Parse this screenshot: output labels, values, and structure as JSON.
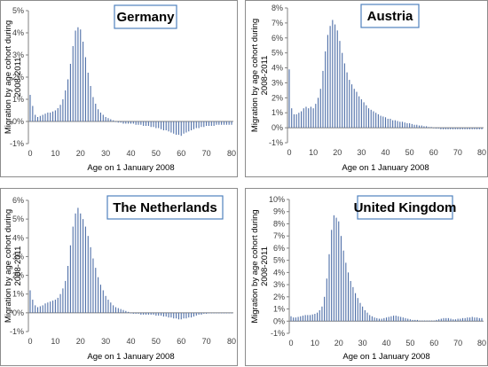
{
  "colors": {
    "bar": "#4f6fa8",
    "axis": "#808080",
    "frame": "#8c8c8c",
    "title_border": "#4f81bd"
  },
  "chart_data": [
    {
      "type": "bar",
      "title": "Germany",
      "xlabel": "Age on 1 January 2008",
      "ylabel": "Migration by age cohort during 2008-2011",
      "x": [
        0,
        1,
        2,
        3,
        4,
        5,
        6,
        7,
        8,
        9,
        10,
        11,
        12,
        13,
        14,
        15,
        16,
        17,
        18,
        19,
        20,
        21,
        22,
        23,
        24,
        25,
        26,
        27,
        28,
        29,
        30,
        31,
        32,
        33,
        34,
        35,
        36,
        37,
        38,
        39,
        40,
        41,
        42,
        43,
        44,
        45,
        46,
        47,
        48,
        49,
        50,
        51,
        52,
        53,
        54,
        55,
        56,
        57,
        58,
        59,
        60,
        61,
        62,
        63,
        64,
        65,
        66,
        67,
        68,
        69,
        70,
        71,
        72,
        73,
        74,
        75,
        76,
        77,
        78,
        79,
        80
      ],
      "values": [
        1.2,
        0.7,
        0.3,
        0.2,
        0.25,
        0.3,
        0.35,
        0.4,
        0.4,
        0.45,
        0.5,
        0.6,
        0.75,
        1.0,
        1.4,
        1.9,
        2.6,
        3.4,
        4.1,
        4.25,
        4.15,
        3.6,
        2.9,
        2.2,
        1.6,
        1.1,
        0.8,
        0.55,
        0.4,
        0.3,
        0.2,
        0.15,
        0.1,
        0.05,
        0.0,
        -0.05,
        -0.05,
        -0.1,
        -0.1,
        -0.1,
        -0.1,
        -0.1,
        -0.15,
        -0.15,
        -0.15,
        -0.2,
        -0.2,
        -0.2,
        -0.25,
        -0.25,
        -0.3,
        -0.3,
        -0.35,
        -0.4,
        -0.4,
        -0.45,
        -0.5,
        -0.55,
        -0.6,
        -0.6,
        -0.65,
        -0.55,
        -0.5,
        -0.45,
        -0.4,
        -0.35,
        -0.3,
        -0.3,
        -0.25,
        -0.25,
        -0.2,
        -0.2,
        -0.2,
        -0.2,
        -0.15,
        -0.15,
        -0.15,
        -0.15,
        -0.15,
        -0.15,
        -0.15
      ],
      "ylim": [
        -1,
        5
      ],
      "y_ticks": [
        "-1%",
        "0%",
        "1%",
        "2%",
        "3%",
        "4%",
        "5%"
      ],
      "x_ticks": [
        "0",
        "10",
        "20",
        "30",
        "40",
        "50",
        "60",
        "70",
        "80"
      ],
      "grid": false
    },
    {
      "type": "bar",
      "title": "Austria",
      "xlabel": "Age on 1 January 2008",
      "ylabel": "Migration by age cohort during 2008-2011",
      "x": [
        0,
        1,
        2,
        3,
        4,
        5,
        6,
        7,
        8,
        9,
        10,
        11,
        12,
        13,
        14,
        15,
        16,
        17,
        18,
        19,
        20,
        21,
        22,
        23,
        24,
        25,
        26,
        27,
        28,
        29,
        30,
        31,
        32,
        33,
        34,
        35,
        36,
        37,
        38,
        39,
        40,
        41,
        42,
        43,
        44,
        45,
        46,
        47,
        48,
        49,
        50,
        51,
        52,
        53,
        54,
        55,
        56,
        57,
        58,
        59,
        60,
        61,
        62,
        63,
        64,
        65,
        66,
        67,
        68,
        69,
        70,
        71,
        72,
        73,
        74,
        75,
        76,
        77,
        78,
        79,
        80
      ],
      "values": [
        3.9,
        1.3,
        0.9,
        0.9,
        1.0,
        1.1,
        1.3,
        1.4,
        1.3,
        1.4,
        1.3,
        1.6,
        2.0,
        2.6,
        3.8,
        5.1,
        6.2,
        6.8,
        7.2,
        6.9,
        6.5,
        5.8,
        5.0,
        4.3,
        3.7,
        3.2,
        2.9,
        2.6,
        2.4,
        2.1,
        1.9,
        1.7,
        1.5,
        1.3,
        1.2,
        1.1,
        1.0,
        0.9,
        0.8,
        0.75,
        0.7,
        0.6,
        0.6,
        0.5,
        0.5,
        0.45,
        0.4,
        0.4,
        0.35,
        0.3,
        0.3,
        0.25,
        0.2,
        0.2,
        0.15,
        0.15,
        0.1,
        0.1,
        0.05,
        0.05,
        0.0,
        -0.05,
        -0.05,
        -0.1,
        -0.1,
        -0.1,
        -0.1,
        -0.1,
        -0.1,
        -0.1,
        -0.1,
        -0.1,
        -0.1,
        -0.1,
        -0.1,
        -0.1,
        -0.1,
        -0.1,
        -0.1,
        -0.1,
        -0.1
      ],
      "ylim": [
        -1,
        8
      ],
      "y_ticks": [
        "-1%",
        "0%",
        "1%",
        "2%",
        "3%",
        "4%",
        "5%",
        "6%",
        "7%",
        "8%"
      ],
      "x_ticks": [
        "0",
        "10",
        "20",
        "30",
        "40",
        "50",
        "60",
        "70",
        "80"
      ],
      "grid": false
    },
    {
      "type": "bar",
      "title": "The Netherlands",
      "xlabel": "Age on 1 January 2008",
      "ylabel": "Migration by age cohort during 2008-2011",
      "x": [
        0,
        1,
        2,
        3,
        4,
        5,
        6,
        7,
        8,
        9,
        10,
        11,
        12,
        13,
        14,
        15,
        16,
        17,
        18,
        19,
        20,
        21,
        22,
        23,
        24,
        25,
        26,
        27,
        28,
        29,
        30,
        31,
        32,
        33,
        34,
        35,
        36,
        37,
        38,
        39,
        40,
        41,
        42,
        43,
        44,
        45,
        46,
        47,
        48,
        49,
        50,
        51,
        52,
        53,
        54,
        55,
        56,
        57,
        58,
        59,
        60,
        61,
        62,
        63,
        64,
        65,
        66,
        67,
        68,
        69,
        70,
        71,
        72,
        73,
        74,
        75,
        76,
        77,
        78,
        79,
        80
      ],
      "values": [
        1.2,
        0.7,
        0.4,
        0.3,
        0.35,
        0.4,
        0.5,
        0.55,
        0.6,
        0.65,
        0.7,
        0.8,
        1.0,
        1.3,
        1.7,
        2.5,
        3.6,
        4.6,
        5.3,
        5.6,
        5.3,
        5.0,
        4.6,
        4.1,
        3.5,
        2.9,
        2.4,
        1.9,
        1.5,
        1.2,
        0.9,
        0.7,
        0.55,
        0.4,
        0.3,
        0.25,
        0.2,
        0.15,
        0.1,
        0.05,
        0.0,
        -0.05,
        -0.05,
        -0.05,
        -0.1,
        -0.1,
        -0.1,
        -0.1,
        -0.1,
        -0.1,
        -0.15,
        -0.15,
        -0.15,
        -0.2,
        -0.2,
        -0.25,
        -0.25,
        -0.3,
        -0.3,
        -0.35,
        -0.35,
        -0.3,
        -0.3,
        -0.25,
        -0.25,
        -0.2,
        -0.15,
        -0.1,
        -0.1,
        -0.05,
        -0.05,
        0.0,
        0.0,
        0.0,
        0.0,
        0.0,
        0.0,
        0.0,
        0.0,
        0.0,
        0.0
      ],
      "ylim": [
        -1,
        6
      ],
      "y_ticks": [
        "-1%",
        "0%",
        "1%",
        "2%",
        "3%",
        "4%",
        "5%",
        "6%"
      ],
      "x_ticks": [
        "0",
        "10",
        "20",
        "30",
        "40",
        "50",
        "60",
        "70",
        "80"
      ],
      "grid": false
    },
    {
      "type": "bar",
      "title": "United Kingdom",
      "xlabel": "Age on 1 January 2008",
      "ylabel": "Migration by age cohort during 2008-2011",
      "x": [
        0,
        1,
        2,
        3,
        4,
        5,
        6,
        7,
        8,
        9,
        10,
        11,
        12,
        13,
        14,
        15,
        16,
        17,
        18,
        19,
        20,
        21,
        22,
        23,
        24,
        25,
        26,
        27,
        28,
        29,
        30,
        31,
        32,
        33,
        34,
        35,
        36,
        37,
        38,
        39,
        40,
        41,
        42,
        43,
        44,
        45,
        46,
        47,
        48,
        49,
        50,
        51,
        52,
        53,
        54,
        55,
        56,
        57,
        58,
        59,
        60,
        61,
        62,
        63,
        64,
        65,
        66,
        67,
        68,
        69,
        70,
        71,
        72,
        73,
        74,
        75,
        76,
        77,
        78,
        79,
        80
      ],
      "values": [
        0.4,
        0.3,
        0.3,
        0.35,
        0.4,
        0.45,
        0.5,
        0.5,
        0.5,
        0.55,
        0.6,
        0.7,
        0.9,
        1.2,
        2.0,
        3.5,
        5.5,
        7.5,
        8.7,
        8.5,
        8.2,
        7.0,
        5.8,
        4.8,
        4.0,
        3.3,
        2.8,
        2.3,
        1.9,
        1.5,
        1.2,
        0.9,
        0.7,
        0.5,
        0.4,
        0.3,
        0.25,
        0.2,
        0.2,
        0.25,
        0.3,
        0.35,
        0.4,
        0.45,
        0.45,
        0.4,
        0.35,
        0.3,
        0.25,
        0.2,
        0.15,
        0.1,
        0.1,
        0.1,
        0.05,
        0.05,
        0.05,
        0.05,
        0.05,
        0.05,
        0.05,
        0.1,
        0.15,
        0.2,
        0.25,
        0.25,
        0.25,
        0.2,
        0.15,
        0.15,
        0.2,
        0.2,
        0.25,
        0.25,
        0.3,
        0.3,
        0.35,
        0.3,
        0.3,
        0.25,
        0.25
      ],
      "ylim": [
        -1,
        10
      ],
      "y_ticks": [
        "-1%",
        "0%",
        "1%",
        "2%",
        "3%",
        "4%",
        "5%",
        "6%",
        "7%",
        "8%",
        "9%",
        "10%"
      ],
      "x_ticks": [
        "0",
        "10",
        "20",
        "30",
        "40",
        "50",
        "60",
        "70",
        "80"
      ],
      "grid": false
    }
  ]
}
